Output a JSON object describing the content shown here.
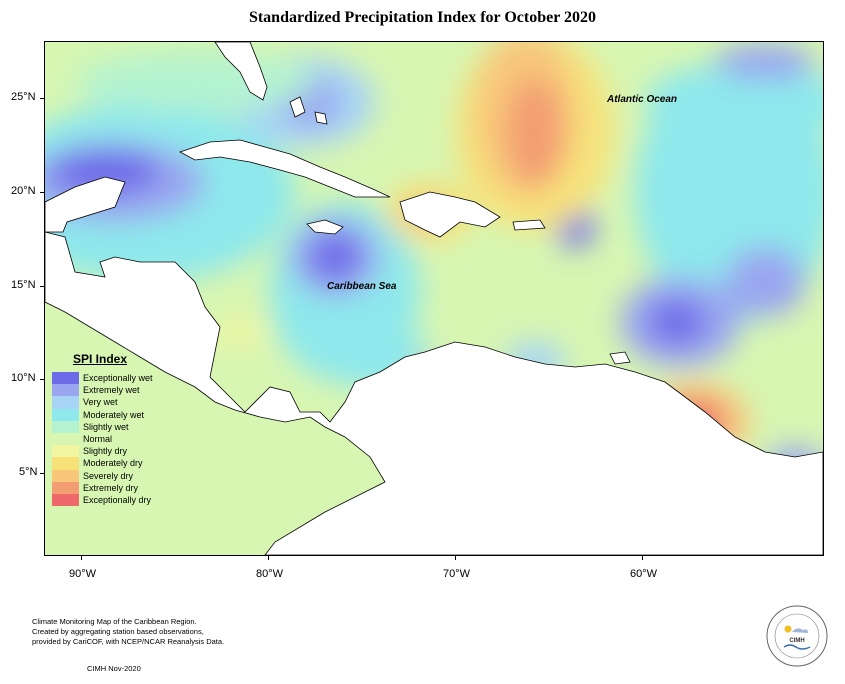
{
  "title": "Standardized Precipitation Index for October 2020",
  "map": {
    "lat_labels": [
      "25°N",
      "20°N",
      "15°N",
      "10°N",
      "5°N"
    ],
    "lon_labels": [
      "90°W",
      "80°W",
      "70°W",
      "60°W"
    ],
    "ocean_labels": {
      "atlantic": "Atlantic Ocean",
      "caribbean": "Caribbean Sea"
    },
    "land_color": "#ffffff",
    "background_color": "#d7f6b2"
  },
  "legend": {
    "title": "SPI Index",
    "items": [
      {
        "label": "Exceptionally wet",
        "color": "#6d6be8"
      },
      {
        "label": "Extremely wet",
        "color": "#9aa6f0"
      },
      {
        "label": "Very wet",
        "color": "#a7d4f5"
      },
      {
        "label": "Moderately wet",
        "color": "#8ee8ec"
      },
      {
        "label": "Slightly wet",
        "color": "#b4f3d0"
      },
      {
        "label": "Normal",
        "color": "#d7f6b2"
      },
      {
        "label": "Slightly dry",
        "color": "#f2f6a0"
      },
      {
        "label": "Moderately dry",
        "color": "#f7e27a"
      },
      {
        "label": "Severely dry",
        "color": "#f8c77a"
      },
      {
        "label": "Extremely dry",
        "color": "#f39e72"
      },
      {
        "label": "Exceptionally dry",
        "color": "#ee6a6a"
      }
    ]
  },
  "footer": {
    "lines": [
      "Climate Monitoring Map of the Caribbean Region.",
      "Created by aggregating station based observations,",
      "provided by CariCOF, with NCEP/NCAR Reanalysis Data."
    ],
    "date": "CIMH Nov-2020"
  },
  "logo": {
    "text": "CIMH"
  }
}
